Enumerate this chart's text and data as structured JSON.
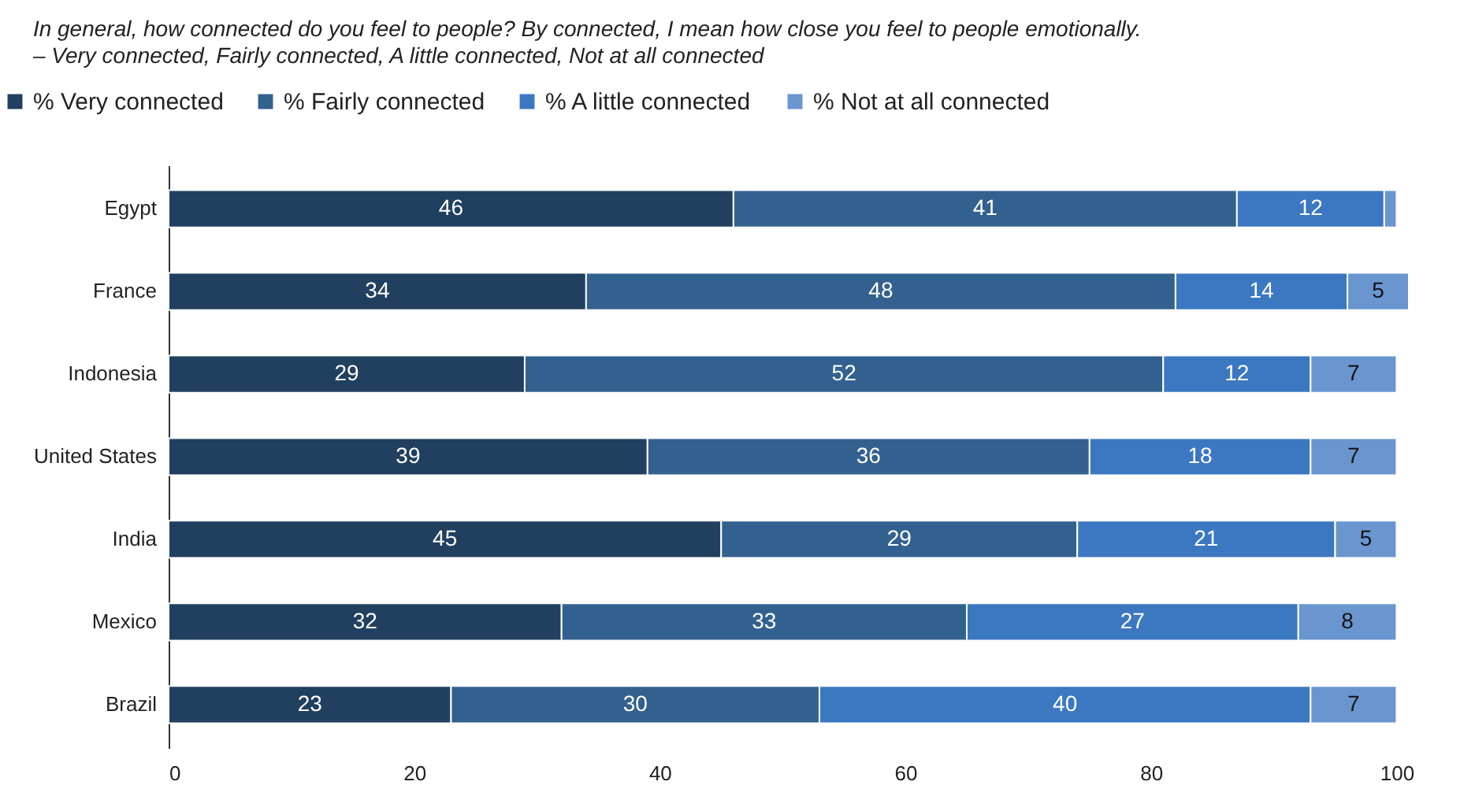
{
  "chart_data": {
    "type": "bar",
    "orientation": "horizontal",
    "stacked": true,
    "title": "In general, how connected do you feel to people? By connected, I mean how close you feel to people emotionally.",
    "subtitle": "– Very connected, Fairly connected, A little connected, Not at all connected",
    "categories": [
      "Egypt",
      "France",
      "Indonesia",
      "United States",
      "India",
      "Mexico",
      "Brazil"
    ],
    "series": [
      {
        "name": "% Very connected",
        "color": "#21405f",
        "values": [
          46,
          34,
          29,
          39,
          45,
          32,
          23
        ],
        "value_labels": [
          "46",
          "34",
          "29",
          "39",
          "45",
          "32",
          "23"
        ]
      },
      {
        "name": "% Fairly connected",
        "color": "#33618f",
        "values": [
          41,
          48,
          52,
          36,
          29,
          33,
          30
        ],
        "value_labels": [
          "41",
          "48",
          "52",
          "36",
          "29",
          "33",
          "30"
        ]
      },
      {
        "name": "% A little connected",
        "color": "#3b78c1",
        "values": [
          12,
          14,
          12,
          18,
          21,
          27,
          40
        ],
        "value_labels": [
          "12",
          "14",
          "12",
          "18",
          "21",
          "27",
          "40"
        ]
      },
      {
        "name": "% Not at all connected",
        "color": "#6a96d0",
        "values": [
          1,
          5,
          7,
          7,
          5,
          8,
          7
        ],
        "value_labels": [
          null,
          "5",
          "7",
          "7",
          "5",
          "8",
          "7"
        ]
      }
    ],
    "xlim": [
      0,
      101
    ],
    "xticks": [
      0,
      20,
      40,
      60,
      80,
      100
    ],
    "grid": false,
    "legend": "top left"
  }
}
